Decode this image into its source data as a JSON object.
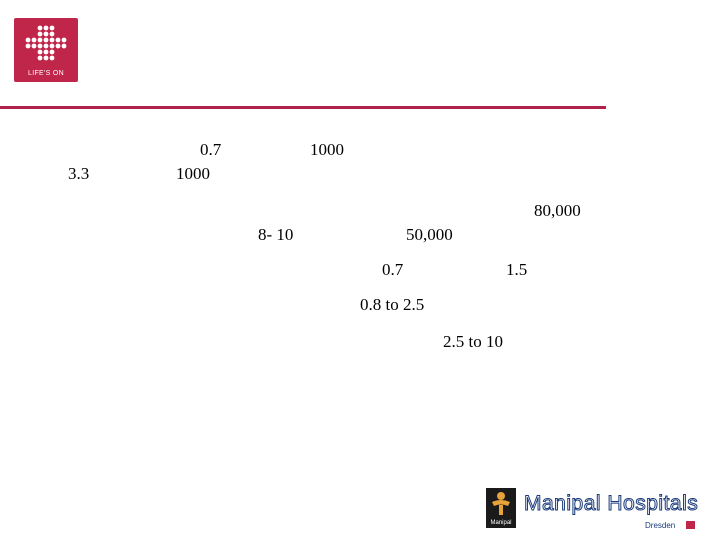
{
  "header": {
    "logo": {
      "caption": "LIFE'S ON",
      "color": "#c0264a"
    },
    "divider_color": "#b0224a"
  },
  "values": {
    "v1": "0.7",
    "v2": "1000",
    "v3": "3.3",
    "v4": "1000",
    "v5": "80,000",
    "v6": "8- 10",
    "v7": "50,000",
    "v8": "0.7",
    "v9": "1.5",
    "v10": "0.8 to 2.5",
    "v11": "2.5 to 10"
  },
  "footer": {
    "mark_label": "Manipal",
    "brand_name": "Manipal Hospitals",
    "brand_sub": "Dresden",
    "brand_color": "#1a3a7a"
  }
}
